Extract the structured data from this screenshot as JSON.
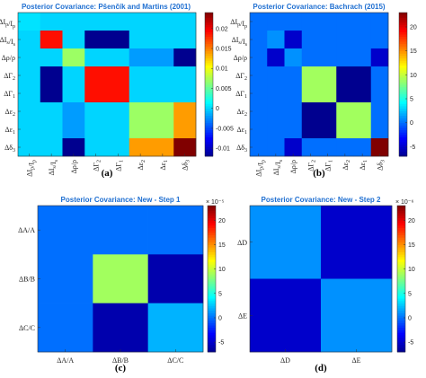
{
  "colors": {
    "jet": [
      "#00008f",
      "#0000ff",
      "#0080ff",
      "#00ffff",
      "#80ff80",
      "#ffff00",
      "#ff8000",
      "#ff0000",
      "#800000"
    ],
    "title": "#1f6fd1"
  },
  "chart_data": [
    {
      "type": "heatmap",
      "title": "Posterior Covariance: Pšenčík and Martins (2001)",
      "caption": "(a)",
      "labels": [
        "ΔI_p/I_p",
        "ΔI_s/I_s",
        "Δρ/ρ",
        "ΔΓ_2",
        "ΔΓ_1",
        "Δε_2",
        "Δε_1",
        "Δδ_3"
      ],
      "clim": [
        -0.012,
        0.024
      ],
      "colorbar_ticks": [
        "0.02",
        "0.015",
        "0.01",
        "0.005",
        "0",
        "-0.005",
        "-0.01"
      ],
      "colorbar_tick_values": [
        0.02,
        0.015,
        0.01,
        0.005,
        0,
        -0.005,
        -0.01
      ],
      "exponent": "",
      "matrix": [
        [
          0.0005,
          0,
          0,
          0,
          0,
          0,
          0,
          0
        ],
        [
          0,
          0.019,
          0,
          -0.012,
          -0.012,
          0,
          0,
          0
        ],
        [
          0,
          0,
          0.007,
          0,
          0,
          -0.002,
          -0.002,
          -0.012
        ],
        [
          0,
          -0.012,
          0,
          0.019,
          0.019,
          0,
          0,
          0
        ],
        [
          0,
          -0.012,
          0,
          0.019,
          0.019,
          0,
          0,
          0
        ],
        [
          0,
          0,
          -0.002,
          0,
          0,
          0.007,
          0.007,
          0.014
        ],
        [
          0,
          0,
          -0.002,
          0,
          0,
          0.007,
          0.007,
          0.014
        ],
        [
          0,
          0,
          -0.012,
          0,
          0,
          0.014,
          0.014,
          0.024
        ]
      ]
    },
    {
      "type": "heatmap",
      "title": "Posterior Covariance: Bachrach (2015)",
      "caption": "(b)",
      "labels": [
        "ΔI_p/I_p",
        "ΔI_s/I_s",
        "Δρ/ρ",
        "ΔΓ_2",
        "ΔΓ_1",
        "Δε_2",
        "Δε_1",
        "Δδ_3"
      ],
      "clim": [
        -7,
        23
      ],
      "colorbar_ticks": [
        "20",
        "15",
        "10",
        "5",
        "0",
        "-5"
      ],
      "colorbar_tick_values": [
        20,
        15,
        10,
        5,
        0,
        -5
      ],
      "exponent": "",
      "matrix": [
        [
          0,
          0,
          0,
          0,
          0,
          0,
          0,
          0
        ],
        [
          0,
          1,
          -5,
          0,
          0,
          0,
          0,
          0
        ],
        [
          0,
          -5,
          1,
          0,
          0,
          0,
          0,
          -5
        ],
        [
          0,
          0,
          0,
          9,
          9,
          -7,
          -7,
          0
        ],
        [
          0,
          0,
          0,
          9,
          9,
          -7,
          -7,
          0
        ],
        [
          0,
          0,
          0,
          -7,
          -7,
          9,
          9,
          0
        ],
        [
          0,
          0,
          0,
          -7,
          -7,
          9,
          9,
          0
        ],
        [
          0,
          0,
          -5,
          0,
          0,
          0,
          0,
          23
        ]
      ]
    },
    {
      "type": "heatmap",
      "title": "Posterior Covariance: New - Step 1",
      "caption": "(c)",
      "labels": [
        "ΔA/A",
        "ΔB/B",
        "ΔC/C"
      ],
      "clim": [
        -7,
        23
      ],
      "colorbar_ticks": [
        "20",
        "15",
        "10",
        "5",
        "0",
        "-5"
      ],
      "colorbar_tick_values": [
        20,
        15,
        10,
        5,
        0,
        -5
      ],
      "exponent": "× 10⁻⁵",
      "matrix": [
        [
          0,
          0,
          0
        ],
        [
          0,
          9,
          -6
        ],
        [
          0,
          -6,
          2
        ]
      ]
    },
    {
      "type": "heatmap",
      "title": "Posterior Covariance: New - Step 2",
      "caption": "(d)",
      "labels": [
        "ΔD",
        "ΔE"
      ],
      "clim": [
        -7,
        23
      ],
      "colorbar_ticks": [
        "20",
        "15",
        "10",
        "5",
        "0",
        "-5"
      ],
      "colorbar_tick_values": [
        20,
        15,
        10,
        5,
        0,
        -5
      ],
      "exponent": "× 10⁻⁶",
      "matrix": [
        [
          1,
          -5
        ],
        [
          -5,
          1
        ]
      ]
    }
  ]
}
